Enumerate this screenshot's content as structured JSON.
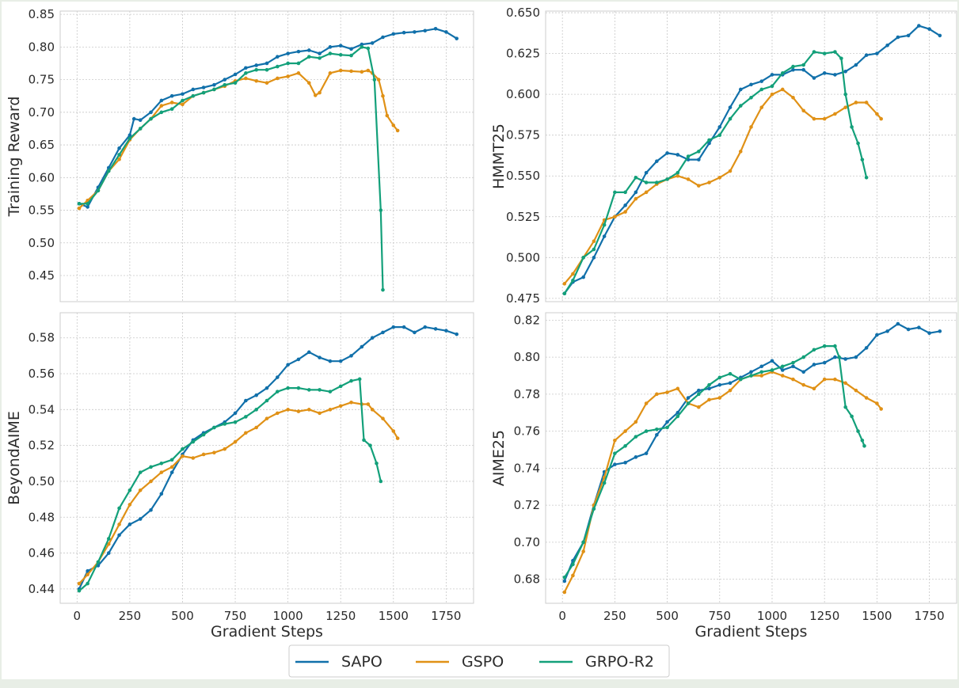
{
  "colors": {
    "SAPO": "#1170aa",
    "GSPO": "#e09116",
    "GRPO-R2": "#13a07a",
    "grid": "#c8c8c8",
    "frame": "#cccccc"
  },
  "legend": {
    "location": "bottom-center",
    "items": [
      "SAPO",
      "GSPO",
      "GRPO-R2"
    ]
  },
  "chart_data": [
    {
      "type": "line",
      "position": "top-left",
      "title": "",
      "xlabel": "",
      "ylabel": "Training Reward",
      "xlim": [
        -80,
        1880
      ],
      "ylim": [
        0.41,
        0.855
      ],
      "xticks": [
        0,
        250,
        500,
        750,
        1000,
        1250,
        1500,
        1750
      ],
      "xtick_labels": [
        "",
        "",
        "",
        "",
        "",
        "",
        "",
        ""
      ],
      "yticks": [
        0.45,
        0.5,
        0.55,
        0.6,
        0.65,
        0.7,
        0.75,
        0.8,
        0.85
      ],
      "ytick_labels": [
        "0.45",
        "0.50",
        "0.55",
        "0.60",
        "0.65",
        "0.70",
        "0.75",
        "0.80",
        "0.85"
      ],
      "series": [
        {
          "name": "SAPO",
          "x": [
            10,
            50,
            100,
            150,
            200,
            250,
            270,
            300,
            350,
            400,
            450,
            500,
            550,
            600,
            650,
            700,
            750,
            800,
            850,
            900,
            950,
            1000,
            1050,
            1100,
            1150,
            1200,
            1250,
            1300,
            1350,
            1400,
            1450,
            1500,
            1550,
            1600,
            1650,
            1700,
            1750,
            1800
          ],
          "y": [
            0.56,
            0.555,
            0.585,
            0.615,
            0.645,
            0.665,
            0.69,
            0.688,
            0.7,
            0.718,
            0.725,
            0.728,
            0.735,
            0.738,
            0.742,
            0.75,
            0.758,
            0.768,
            0.772,
            0.775,
            0.785,
            0.79,
            0.793,
            0.795,
            0.79,
            0.8,
            0.802,
            0.797,
            0.804,
            0.806,
            0.815,
            0.82,
            0.822,
            0.823,
            0.825,
            0.828,
            0.823,
            0.813
          ]
        },
        {
          "name": "GSPO",
          "x": [
            10,
            50,
            100,
            150,
            200,
            250,
            300,
            350,
            400,
            450,
            500,
            550,
            600,
            650,
            700,
            750,
            800,
            850,
            900,
            950,
            1000,
            1050,
            1100,
            1130,
            1150,
            1200,
            1250,
            1300,
            1350,
            1380,
            1400,
            1430,
            1450,
            1470,
            1500,
            1520
          ],
          "y": [
            0.553,
            0.565,
            0.58,
            0.61,
            0.628,
            0.658,
            0.675,
            0.69,
            0.71,
            0.715,
            0.712,
            0.725,
            0.73,
            0.735,
            0.74,
            0.748,
            0.752,
            0.748,
            0.745,
            0.752,
            0.755,
            0.76,
            0.745,
            0.726,
            0.73,
            0.76,
            0.764,
            0.763,
            0.762,
            0.764,
            0.76,
            0.75,
            0.725,
            0.695,
            0.68,
            0.672
          ]
        },
        {
          "name": "GRPO-R2",
          "x": [
            10,
            50,
            100,
            150,
            200,
            250,
            300,
            350,
            400,
            450,
            500,
            550,
            600,
            650,
            700,
            750,
            800,
            850,
            900,
            950,
            1000,
            1050,
            1100,
            1150,
            1200,
            1250,
            1300,
            1350,
            1380,
            1410,
            1440,
            1450
          ],
          "y": [
            0.56,
            0.56,
            0.58,
            0.61,
            0.635,
            0.66,
            0.675,
            0.69,
            0.7,
            0.705,
            0.718,
            0.725,
            0.73,
            0.735,
            0.742,
            0.745,
            0.76,
            0.765,
            0.765,
            0.77,
            0.775,
            0.775,
            0.785,
            0.783,
            0.79,
            0.788,
            0.787,
            0.8,
            0.798,
            0.75,
            0.55,
            0.428
          ]
        }
      ]
    },
    {
      "type": "line",
      "position": "top-right",
      "title": "",
      "xlabel": "",
      "ylabel": "HMMT25",
      "xlim": [
        -80,
        1880
      ],
      "ylim": [
        0.473,
        0.651
      ],
      "xticks": [
        0,
        250,
        500,
        750,
        1000,
        1250,
        1500,
        1750
      ],
      "xtick_labels": [
        "",
        "",
        "",
        "",
        "",
        "",
        "",
        ""
      ],
      "yticks": [
        0.475,
        0.5,
        0.525,
        0.55,
        0.575,
        0.6,
        0.625,
        0.65
      ],
      "ytick_labels": [
        "0.475",
        "0.500",
        "0.525",
        "0.550",
        "0.575",
        "0.600",
        "0.625",
        "0.650"
      ],
      "series": [
        {
          "name": "SAPO",
          "x": [
            10,
            50,
            100,
            150,
            200,
            250,
            300,
            350,
            400,
            450,
            500,
            550,
            600,
            650,
            700,
            750,
            800,
            850,
            900,
            950,
            1000,
            1050,
            1100,
            1150,
            1200,
            1250,
            1300,
            1350,
            1400,
            1450,
            1500,
            1550,
            1600,
            1650,
            1700,
            1750,
            1800
          ],
          "y": [
            0.478,
            0.485,
            0.488,
            0.5,
            0.513,
            0.525,
            0.532,
            0.54,
            0.552,
            0.559,
            0.564,
            0.563,
            0.56,
            0.56,
            0.57,
            0.58,
            0.592,
            0.603,
            0.606,
            0.608,
            0.612,
            0.612,
            0.615,
            0.615,
            0.61,
            0.613,
            0.612,
            0.614,
            0.618,
            0.624,
            0.625,
            0.63,
            0.635,
            0.636,
            0.642,
            0.64,
            0.636
          ]
        },
        {
          "name": "GSPO",
          "x": [
            10,
            50,
            100,
            150,
            200,
            250,
            300,
            350,
            400,
            450,
            500,
            550,
            600,
            650,
            700,
            750,
            800,
            850,
            900,
            950,
            1000,
            1050,
            1100,
            1150,
            1200,
            1250,
            1300,
            1350,
            1400,
            1450,
            1500,
            1520
          ],
          "y": [
            0.484,
            0.49,
            0.5,
            0.51,
            0.523,
            0.525,
            0.528,
            0.536,
            0.54,
            0.545,
            0.548,
            0.55,
            0.548,
            0.544,
            0.546,
            0.549,
            0.553,
            0.565,
            0.58,
            0.592,
            0.6,
            0.603,
            0.598,
            0.59,
            0.585,
            0.585,
            0.588,
            0.592,
            0.595,
            0.595,
            0.588,
            0.585
          ]
        },
        {
          "name": "GRPO-R2",
          "x": [
            10,
            50,
            100,
            150,
            200,
            250,
            300,
            350,
            400,
            450,
            500,
            550,
            600,
            650,
            700,
            750,
            800,
            850,
            900,
            950,
            1000,
            1050,
            1100,
            1150,
            1200,
            1250,
            1300,
            1330,
            1350,
            1380,
            1410,
            1430,
            1450
          ],
          "y": [
            0.478,
            0.486,
            0.5,
            0.505,
            0.52,
            0.54,
            0.54,
            0.549,
            0.546,
            0.546,
            0.548,
            0.552,
            0.562,
            0.565,
            0.572,
            0.575,
            0.585,
            0.593,
            0.598,
            0.603,
            0.605,
            0.613,
            0.617,
            0.618,
            0.626,
            0.625,
            0.626,
            0.622,
            0.6,
            0.58,
            0.57,
            0.56,
            0.549
          ]
        }
      ]
    },
    {
      "type": "line",
      "position": "bottom-left",
      "title": "",
      "xlabel": "Gradient Steps",
      "ylabel": "BeyondAIME",
      "xlim": [
        -80,
        1880
      ],
      "ylim": [
        0.432,
        0.594
      ],
      "xticks": [
        0,
        250,
        500,
        750,
        1000,
        1250,
        1500,
        1750
      ],
      "xtick_labels": [
        "0",
        "250",
        "500",
        "750",
        "1000",
        "1250",
        "1500",
        "1750"
      ],
      "yticks": [
        0.44,
        0.46,
        0.48,
        0.5,
        0.52,
        0.54,
        0.56,
        0.58
      ],
      "ytick_labels": [
        "0.44",
        "0.46",
        "0.48",
        "0.50",
        "0.52",
        "0.54",
        "0.56",
        "0.58"
      ],
      "series": [
        {
          "name": "SAPO",
          "x": [
            10,
            50,
            100,
            150,
            200,
            250,
            300,
            350,
            400,
            450,
            500,
            550,
            600,
            650,
            700,
            750,
            800,
            850,
            900,
            950,
            1000,
            1050,
            1100,
            1150,
            1200,
            1250,
            1300,
            1350,
            1400,
            1450,
            1500,
            1550,
            1600,
            1650,
            1700,
            1750,
            1800
          ],
          "y": [
            0.44,
            0.45,
            0.453,
            0.46,
            0.47,
            0.476,
            0.479,
            0.484,
            0.493,
            0.505,
            0.515,
            0.523,
            0.527,
            0.53,
            0.533,
            0.538,
            0.545,
            0.548,
            0.552,
            0.558,
            0.565,
            0.568,
            0.572,
            0.569,
            0.567,
            0.567,
            0.57,
            0.575,
            0.58,
            0.583,
            0.586,
            0.586,
            0.583,
            0.586,
            0.585,
            0.584,
            0.582
          ]
        },
        {
          "name": "GSPO",
          "x": [
            10,
            50,
            100,
            150,
            200,
            250,
            300,
            350,
            400,
            450,
            500,
            550,
            600,
            650,
            700,
            750,
            800,
            850,
            900,
            950,
            1000,
            1050,
            1100,
            1150,
            1200,
            1250,
            1300,
            1350,
            1380,
            1400,
            1450,
            1500,
            1520
          ],
          "y": [
            0.443,
            0.448,
            0.455,
            0.465,
            0.476,
            0.487,
            0.495,
            0.5,
            0.505,
            0.508,
            0.514,
            0.513,
            0.515,
            0.516,
            0.518,
            0.522,
            0.527,
            0.53,
            0.535,
            0.538,
            0.54,
            0.539,
            0.54,
            0.538,
            0.54,
            0.542,
            0.544,
            0.543,
            0.543,
            0.54,
            0.535,
            0.528,
            0.524
          ]
        },
        {
          "name": "GRPO-R2",
          "x": [
            10,
            50,
            100,
            150,
            200,
            250,
            300,
            350,
            400,
            450,
            500,
            550,
            600,
            650,
            700,
            750,
            800,
            850,
            900,
            950,
            1000,
            1050,
            1100,
            1150,
            1200,
            1250,
            1300,
            1340,
            1360,
            1390,
            1420,
            1440
          ],
          "y": [
            0.439,
            0.443,
            0.455,
            0.468,
            0.485,
            0.495,
            0.505,
            0.508,
            0.51,
            0.512,
            0.518,
            0.522,
            0.526,
            0.53,
            0.532,
            0.533,
            0.536,
            0.54,
            0.545,
            0.55,
            0.552,
            0.552,
            0.551,
            0.551,
            0.55,
            0.553,
            0.556,
            0.557,
            0.523,
            0.52,
            0.51,
            0.5
          ]
        }
      ]
    },
    {
      "type": "line",
      "position": "bottom-right",
      "title": "",
      "xlabel": "Gradient Steps",
      "ylabel": "AIME25",
      "xlim": [
        -80,
        1880
      ],
      "ylim": [
        0.667,
        0.824
      ],
      "xticks": [
        0,
        250,
        500,
        750,
        1000,
        1250,
        1500,
        1750
      ],
      "xtick_labels": [
        "0",
        "250",
        "500",
        "750",
        "1000",
        "1250",
        "1500",
        "1750"
      ],
      "yticks": [
        0.68,
        0.7,
        0.72,
        0.74,
        0.76,
        0.78,
        0.8,
        0.82
      ],
      "ytick_labels": [
        "0.68",
        "0.70",
        "0.72",
        "0.74",
        "0.76",
        "0.78",
        "0.80",
        "0.82"
      ],
      "series": [
        {
          "name": "SAPO",
          "x": [
            10,
            50,
            100,
            150,
            200,
            250,
            300,
            350,
            400,
            450,
            500,
            550,
            600,
            650,
            700,
            750,
            800,
            850,
            900,
            950,
            1000,
            1050,
            1100,
            1150,
            1200,
            1250,
            1300,
            1350,
            1400,
            1450,
            1500,
            1550,
            1600,
            1650,
            1700,
            1750,
            1800
          ],
          "y": [
            0.679,
            0.69,
            0.7,
            0.72,
            0.738,
            0.742,
            0.743,
            0.746,
            0.748,
            0.758,
            0.765,
            0.77,
            0.778,
            0.782,
            0.783,
            0.785,
            0.786,
            0.789,
            0.792,
            0.795,
            0.798,
            0.793,
            0.795,
            0.792,
            0.796,
            0.797,
            0.8,
            0.799,
            0.8,
            0.805,
            0.812,
            0.814,
            0.818,
            0.815,
            0.816,
            0.813,
            0.814
          ]
        },
        {
          "name": "GSPO",
          "x": [
            10,
            50,
            100,
            150,
            200,
            250,
            300,
            350,
            400,
            450,
            500,
            550,
            600,
            650,
            700,
            750,
            800,
            850,
            900,
            950,
            1000,
            1050,
            1100,
            1150,
            1200,
            1250,
            1300,
            1350,
            1400,
            1450,
            1500,
            1520
          ],
          "y": [
            0.673,
            0.682,
            0.695,
            0.72,
            0.735,
            0.755,
            0.76,
            0.765,
            0.775,
            0.78,
            0.781,
            0.783,
            0.775,
            0.773,
            0.777,
            0.778,
            0.782,
            0.788,
            0.79,
            0.79,
            0.792,
            0.79,
            0.788,
            0.785,
            0.783,
            0.788,
            0.788,
            0.786,
            0.782,
            0.778,
            0.775,
            0.772
          ]
        },
        {
          "name": "GRPO-R2",
          "x": [
            10,
            50,
            100,
            150,
            200,
            250,
            300,
            350,
            400,
            450,
            500,
            550,
            600,
            650,
            700,
            750,
            800,
            850,
            900,
            950,
            1000,
            1050,
            1100,
            1150,
            1200,
            1250,
            1300,
            1320,
            1350,
            1380,
            1410,
            1430,
            1440
          ],
          "y": [
            0.681,
            0.688,
            0.7,
            0.718,
            0.732,
            0.748,
            0.752,
            0.757,
            0.76,
            0.761,
            0.762,
            0.768,
            0.775,
            0.78,
            0.785,
            0.789,
            0.791,
            0.788,
            0.79,
            0.792,
            0.793,
            0.795,
            0.797,
            0.8,
            0.804,
            0.806,
            0.806,
            0.8,
            0.773,
            0.768,
            0.76,
            0.755,
            0.752
          ]
        }
      ]
    }
  ]
}
